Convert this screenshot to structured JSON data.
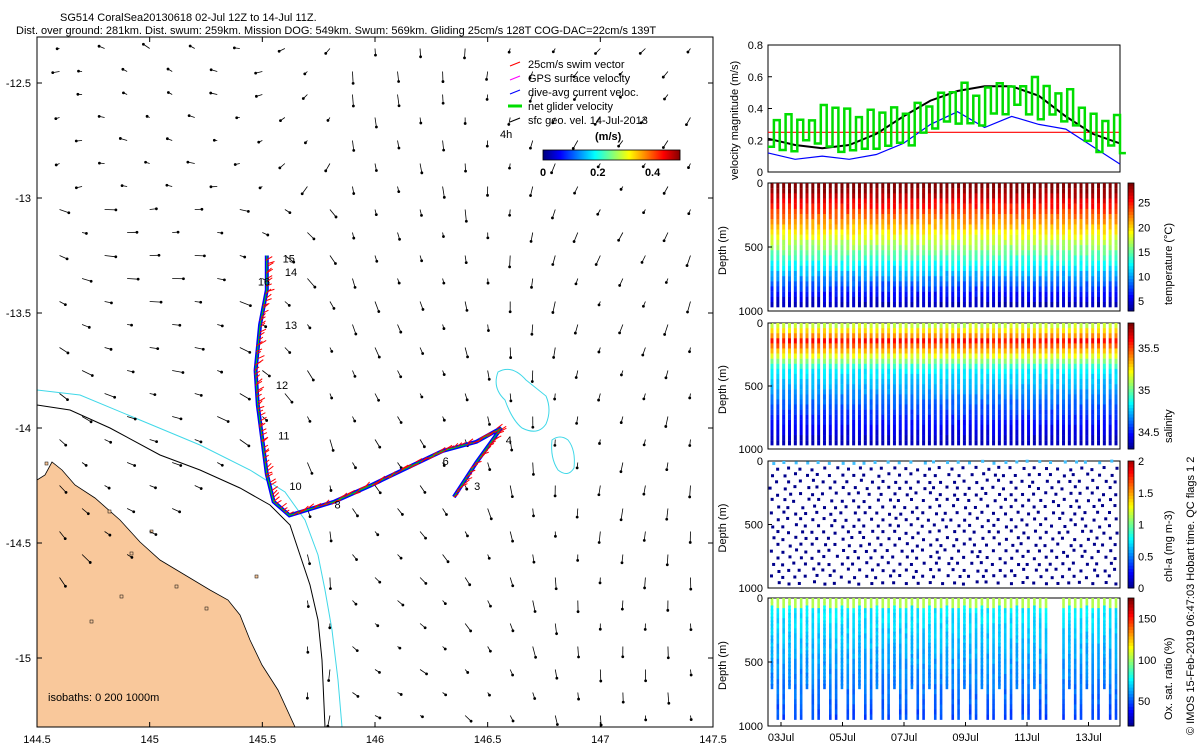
{
  "header": {
    "line1": "SG514 CoralSea20130618 02-Jul 12Z to 14-Jul 11Z.",
    "line2": "Dist. over ground: 281km. Dist. swum: 259km. Mission DOG: 549km. Swum: 569km. Gliding 25cm/s 128T COG-DAC=22cm/s 139T"
  },
  "copyright": "© IMOS 15-Feb-2019 06:47:03 Hobart time. QC flags 1  2",
  "colors": {
    "land": "#f9c89b",
    "isobath_200": "#000000",
    "isobath_1000": "#40d8e8",
    "swim": "#ff0000",
    "gps": "#ff00ff",
    "dac": "#0000ff",
    "net": "#00dd00",
    "geo": "#000000"
  },
  "chart_data": [
    {
      "type": "map",
      "name": "track-map",
      "xlim": [
        144.5,
        147.5
      ],
      "ylim": [
        -15.3,
        -12.3
      ],
      "xticks": [
        "144.5",
        "145",
        "145.5",
        "146",
        "146.5",
        "147",
        "147.5"
      ],
      "yticks": [
        "-12.5",
        "-13",
        "-13.5",
        "-14",
        "-14.5",
        "-15"
      ],
      "legend": [
        {
          "label": "25cm/s swim vector",
          "color": "#ff0000"
        },
        {
          "label": "GPS surface velocity",
          "color": "#ff00ff"
        },
        {
          "label": "dive-avg current veloc.",
          "color": "#0000ff"
        },
        {
          "label": "net glider velocity",
          "color": "#00dd00"
        },
        {
          "label": "sfc geo. vel. 14-Jul-2013",
          "color": "#000000"
        }
      ],
      "colorbar": {
        "title": "(m/s)",
        "ticks": [
          "0",
          "0.2",
          "0.4"
        ],
        "range": [
          0,
          0.5
        ]
      },
      "scale_label": "4h",
      "isobath_label": "isobaths: 0   200  1000m",
      "track": [
        [
          146.35,
          -14.3
        ],
        [
          146.45,
          -14.15
        ],
        [
          146.56,
          -14.0
        ],
        [
          146.45,
          -14.06
        ],
        [
          146.3,
          -14.1
        ],
        [
          146.15,
          -14.17
        ],
        [
          145.98,
          -14.25
        ],
        [
          145.82,
          -14.32
        ],
        [
          145.62,
          -14.38
        ],
        [
          145.55,
          -14.32
        ],
        [
          145.52,
          -14.2
        ],
        [
          145.5,
          -14.05
        ],
        [
          145.48,
          -13.9
        ],
        [
          145.47,
          -13.75
        ],
        [
          145.49,
          -13.55
        ],
        [
          145.52,
          -13.4
        ],
        [
          145.52,
          -13.25
        ]
      ],
      "day_labels": [
        {
          "text": "3",
          "lon": 146.44,
          "lat": -14.27
        },
        {
          "text": "4",
          "lon": 146.58,
          "lat": -14.07
        },
        {
          "text": "6",
          "lon": 146.3,
          "lat": -14.16
        },
        {
          "text": "8",
          "lon": 145.82,
          "lat": -14.35
        },
        {
          "text": "10",
          "lon": 145.62,
          "lat": -14.27
        },
        {
          "text": "11",
          "lon": 145.57,
          "lat": -14.05
        },
        {
          "text": "12",
          "lon": 145.56,
          "lat": -13.83
        },
        {
          "text": "13",
          "lon": 145.6,
          "lat": -13.57
        },
        {
          "text": "14",
          "lon": 145.6,
          "lat": -13.34
        },
        {
          "text": "15",
          "lon": 145.59,
          "lat": -13.28
        },
        {
          "text": "16",
          "lon": 145.48,
          "lat": -13.38
        }
      ]
    },
    {
      "type": "line",
      "name": "velocity-panel",
      "ylabel": "velocity magnitude (m/s)",
      "ylim": [
        0,
        0.8
      ],
      "yticks": [
        "0",
        "0.2",
        "0.4",
        "0.6",
        "0.8"
      ],
      "series": [
        {
          "color": "#ff0000",
          "values": [
            0.25,
            0.25
          ]
        },
        {
          "color": "#000000",
          "values": [
            0.21,
            0.17,
            0.15,
            0.17,
            0.24,
            0.35,
            0.45,
            0.51,
            0.54,
            0.54,
            0.48,
            0.35,
            0.24,
            0.18
          ]
        },
        {
          "color": "#0000ff",
          "values": [
            0.12,
            0.08,
            0.1,
            0.08,
            0.11,
            0.18,
            0.3,
            0.38,
            0.28,
            0.35,
            0.3,
            0.27,
            0.16,
            0.05
          ]
        },
        {
          "color": "#00dd00",
          "values": [
            0.22,
            0.25,
            0.28,
            0.26,
            0.27,
            0.3,
            0.33,
            0.45,
            0.4,
            0.48,
            0.44,
            0.38,
            0.28,
            0.21
          ]
        }
      ]
    },
    {
      "type": "heatmap",
      "name": "temperature-panel",
      "ylabel": "Depth (m)",
      "yticks": [
        "0",
        "500",
        "1000"
      ],
      "colorbar_label": "temperature (°C)",
      "colorbar_ticks": [
        "5",
        "10",
        "15",
        "20",
        "25"
      ],
      "colorbar_range": [
        3,
        29
      ]
    },
    {
      "type": "heatmap",
      "name": "salinity-panel",
      "ylabel": "Depth (m)",
      "yticks": [
        "0",
        "500",
        "1000"
      ],
      "colorbar_label": "salinity",
      "colorbar_ticks": [
        "34.5",
        "35",
        "35.5"
      ],
      "colorbar_range": [
        34.3,
        35.8
      ]
    },
    {
      "type": "heatmap",
      "name": "chla-panel",
      "ylabel": "Depth (m)",
      "yticks": [
        "0",
        "500",
        "1000"
      ],
      "colorbar_label": "chl-a (mg m-3)",
      "colorbar_ticks": [
        "0",
        "0.5",
        "1",
        "1.5",
        "2"
      ],
      "colorbar_range": [
        0,
        2
      ]
    },
    {
      "type": "heatmap",
      "name": "oxygen-panel",
      "ylabel": "Depth (m)",
      "yticks": [
        "0",
        "500",
        "1000"
      ],
      "colorbar_label": "Ox. sat. ratio (%)",
      "colorbar_ticks": [
        "50",
        "100",
        "150"
      ],
      "colorbar_range": [
        20,
        175
      ],
      "xticks": [
        "03Jul",
        "05Jul",
        "07Jul",
        "09Jul",
        "11Jul",
        "13Jul"
      ]
    }
  ]
}
